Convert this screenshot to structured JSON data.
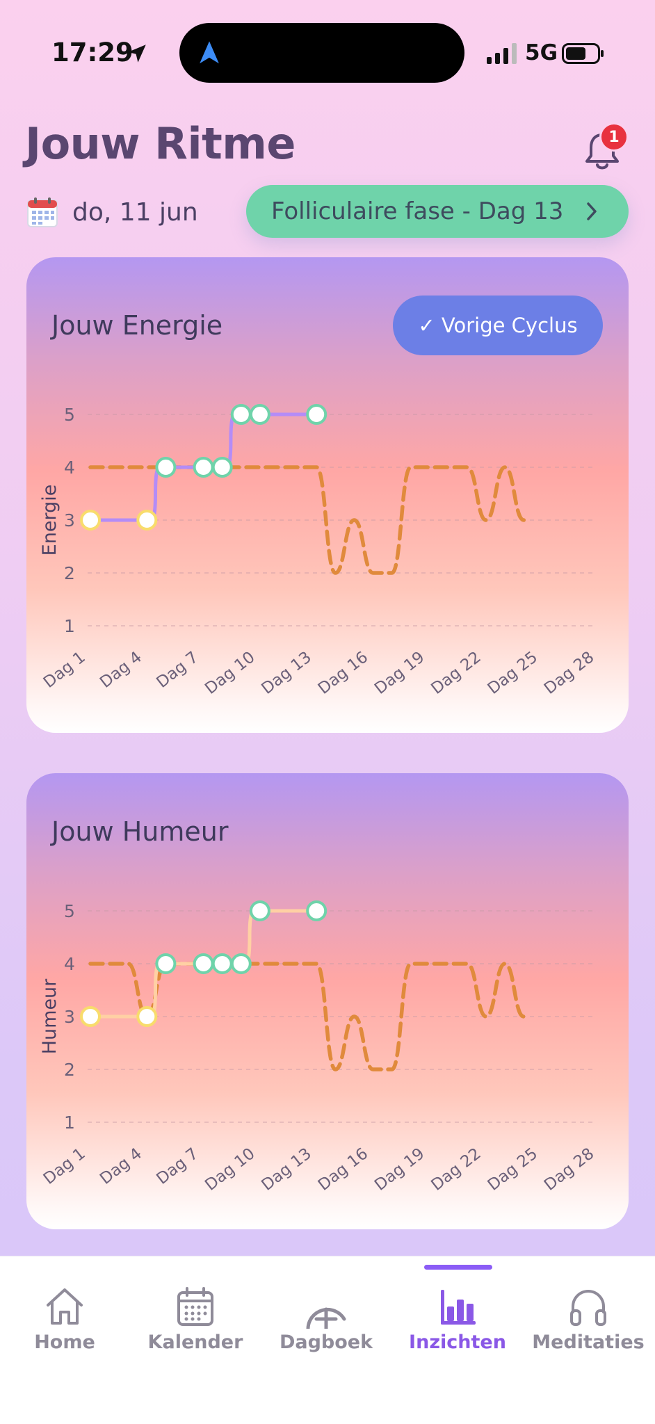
{
  "status": {
    "time": "17:29",
    "network": "5G"
  },
  "header": {
    "title": "Jouw Ritme",
    "notification_count": "1"
  },
  "date": "do, 11 jun",
  "phase": {
    "label": "Folliculaire fase - Dag 13"
  },
  "energy_card": {
    "title": "Jouw Energie",
    "cycle_button": "✓ Vorige Cyclus"
  },
  "mood_card": {
    "title": "Jouw Humeur"
  },
  "tabs": [
    {
      "label": "Home",
      "icon": "home-icon"
    },
    {
      "label": "Kalender",
      "icon": "calendar-icon"
    },
    {
      "label": "Dagboek",
      "icon": "add-circle-icon"
    },
    {
      "label": "Inzichten",
      "icon": "bar-chart-icon"
    },
    {
      "label": "Meditaties",
      "icon": "headphones-icon"
    }
  ],
  "colors": {
    "accent": "#8a58e6",
    "phase": "#6fd3aa",
    "button": "#6c7fe6",
    "previous_cycle": "#e08a3c",
    "energy_line": "#b48cf7",
    "mood_line": "#ffd0a4",
    "low_point": "#f8dc6c",
    "high_point": "#6fd3aa"
  },
  "chart_data": [
    {
      "type": "line",
      "title": "Jouw Energie",
      "ylabel": "Energie",
      "xlabel": "",
      "ylim": [
        1,
        5
      ],
      "y_ticks": [
        "1",
        "2",
        "3",
        "4",
        "5"
      ],
      "x_ticks": [
        "Dag 1",
        "Dag 4",
        "Dag 7",
        "Dag 10",
        "Dag 13",
        "Dag 16",
        "Dag 19",
        "Dag 22",
        "Dag 25",
        "Dag 28"
      ],
      "grid": true,
      "series": [
        {
          "style": "solid",
          "x": [
            1,
            4,
            5,
            7,
            8,
            9,
            10,
            13
          ],
          "y": [
            3,
            3,
            4,
            4,
            4,
            5,
            5,
            5
          ]
        },
        {
          "style": "dashed",
          "x": [
            1,
            2,
            3,
            4,
            5,
            6,
            7,
            8,
            9,
            10,
            11,
            12,
            13,
            14,
            15,
            16,
            17,
            18,
            19,
            20,
            21,
            22,
            23,
            24
          ],
          "y": [
            4,
            4,
            4,
            4,
            4,
            4,
            4,
            4,
            4,
            4,
            4,
            4,
            4,
            2,
            3,
            2,
            2,
            4,
            4,
            4,
            4,
            3,
            4,
            3
          ]
        }
      ]
    },
    {
      "type": "line",
      "title": "Jouw Humeur",
      "ylabel": "Humeur",
      "xlabel": "",
      "ylim": [
        1,
        5
      ],
      "y_ticks": [
        "1",
        "2",
        "3",
        "4",
        "5"
      ],
      "x_ticks": [
        "Dag 1",
        "Dag 4",
        "Dag 7",
        "Dag 10",
        "Dag 13",
        "Dag 16",
        "Dag 19",
        "Dag 22",
        "Dag 25",
        "Dag 28"
      ],
      "grid": true,
      "series": [
        {
          "style": "solid",
          "x": [
            1,
            4,
            5,
            7,
            8,
            9,
            10,
            13
          ],
          "y": [
            3,
            3,
            4,
            4,
            4,
            4,
            5,
            5
          ]
        },
        {
          "style": "dashed",
          "x": [
            1,
            2,
            3,
            4,
            5,
            6,
            7,
            8,
            9,
            10,
            11,
            12,
            13,
            14,
            15,
            16,
            17,
            18,
            19,
            20,
            21,
            22,
            23,
            24
          ],
          "y": [
            4,
            4,
            4,
            3,
            4,
            4,
            4,
            4,
            4,
            4,
            4,
            4,
            4,
            2,
            3,
            2,
            2,
            4,
            4,
            4,
            4,
            3,
            4,
            3
          ]
        }
      ]
    }
  ]
}
